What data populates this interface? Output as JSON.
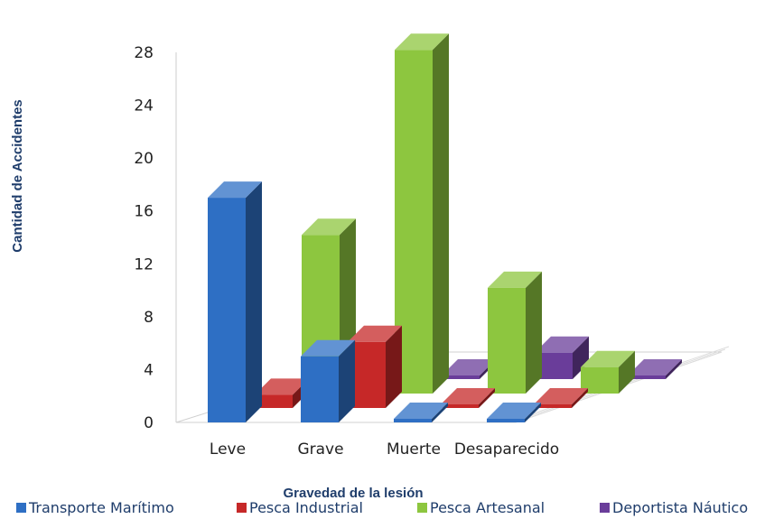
{
  "chart_data": {
    "type": "bar",
    "subtype": "3d-clustered-column",
    "title": "",
    "xlabel": "Gravedad de la lesión",
    "ylabel": "Cantidad de Accidentes",
    "ylim": [
      0,
      28
    ],
    "yticks": [
      0,
      4,
      8,
      12,
      16,
      20,
      24,
      28
    ],
    "categories": [
      "Leve",
      "Grave",
      "Muerte",
      "Desaparecido"
    ],
    "series": [
      {
        "name": "Transporte Marítimo",
        "color": "#2e6fc4",
        "values": [
          17,
          5,
          0,
          0
        ]
      },
      {
        "name": "Pesca Industrial",
        "color": "#c62828",
        "values": [
          1,
          5,
          0,
          0
        ]
      },
      {
        "name": "Pesca Artesanal",
        "color": "#8dc63f",
        "values": [
          12,
          26,
          8,
          2
        ]
      },
      {
        "name": "Deportista Náutico",
        "color": "#6a3d9a",
        "values": [
          0,
          0,
          2,
          0
        ]
      }
    ],
    "legend_position": "bottom",
    "grid": false
  }
}
